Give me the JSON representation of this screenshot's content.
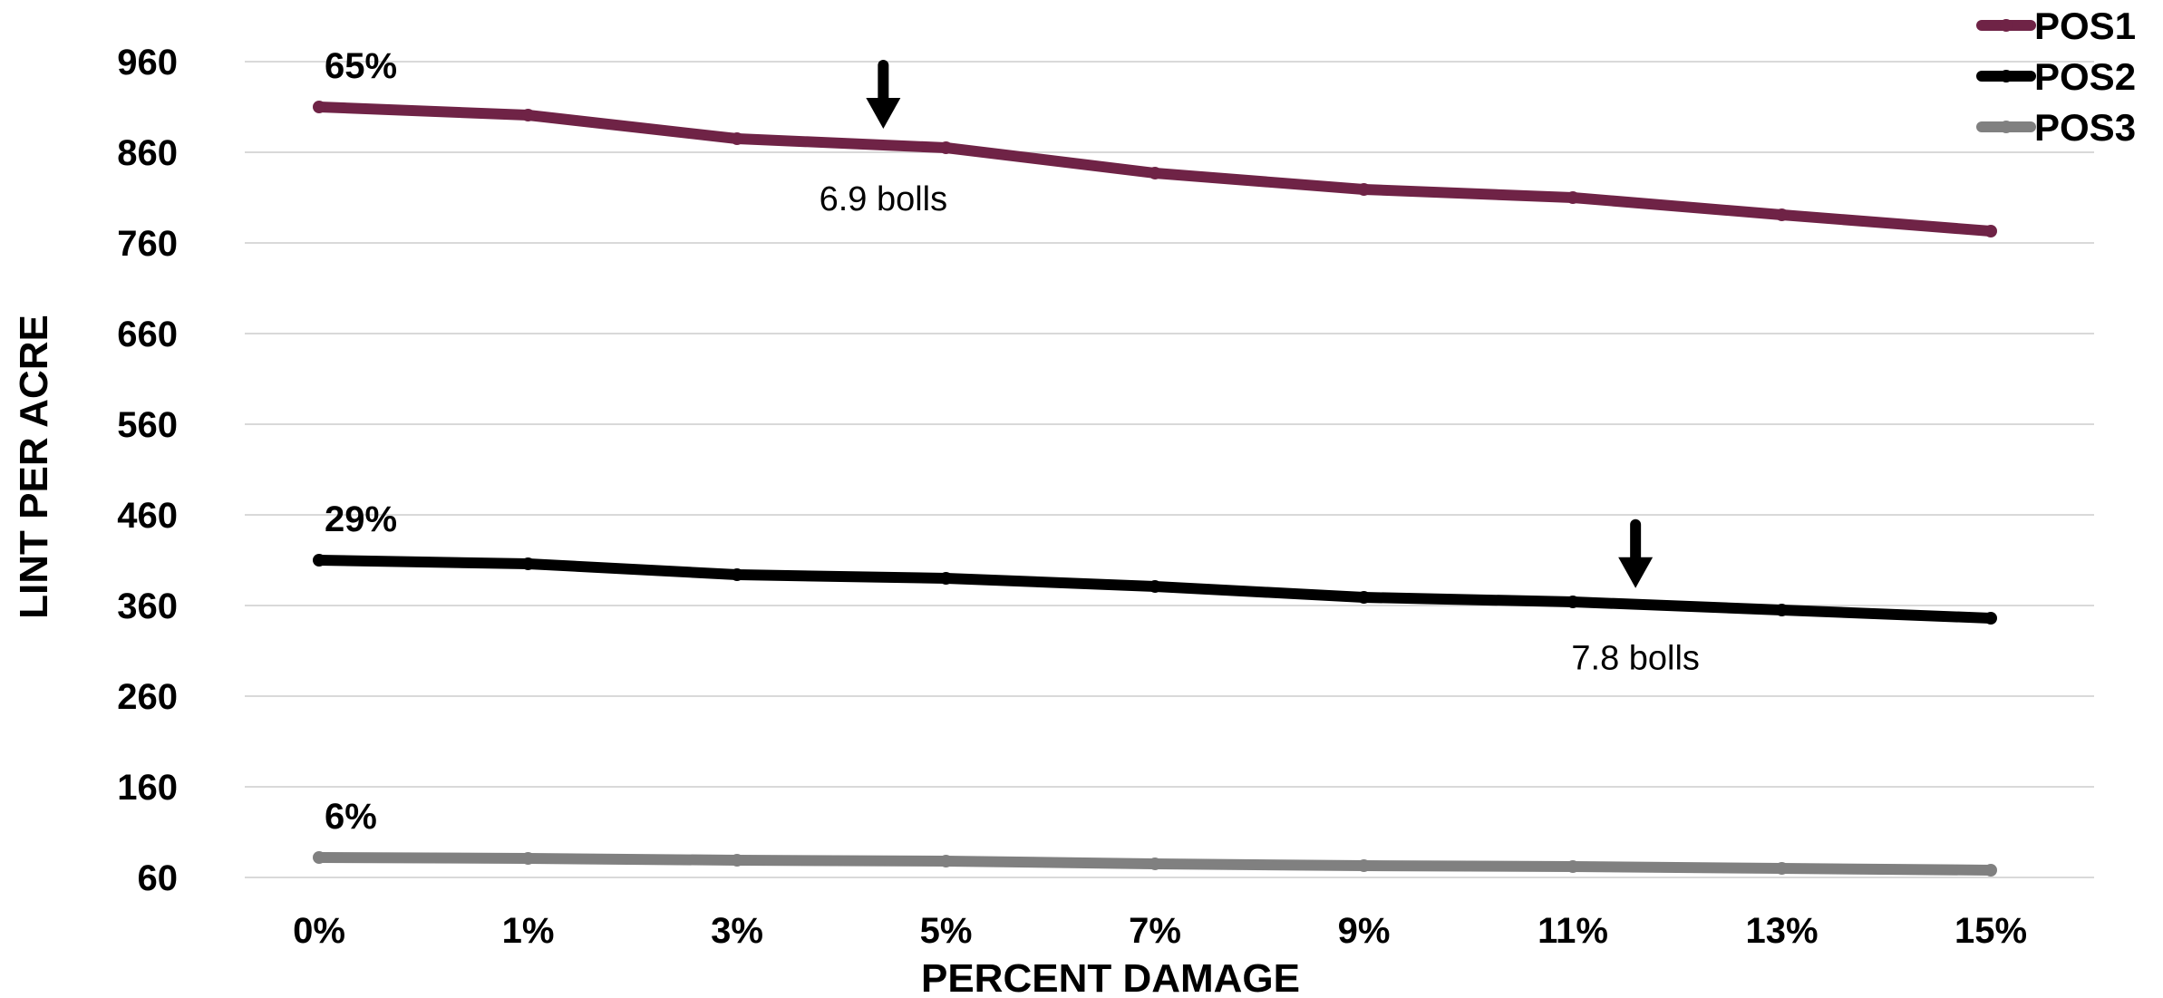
{
  "chart_data": {
    "type": "line",
    "title": "",
    "xlabel": "PERCENT DAMAGE",
    "ylabel": "LINT PER ACRE",
    "categories": [
      "0%",
      "1%",
      "3%",
      "5%",
      "7%",
      "9%",
      "11%",
      "13%",
      "15%"
    ],
    "yticks": [
      "960",
      "860",
      "760",
      "660",
      "560",
      "460",
      "360",
      "260",
      "160",
      "60"
    ],
    "ylim": [
      60,
      960
    ],
    "grid": true,
    "legend": "top-right",
    "series": [
      {
        "name": "POS1",
        "color": "#6f2346",
        "values": [
          910,
          901,
          875,
          865,
          837,
          819,
          810,
          791,
          773
        ],
        "start_label": "65%"
      },
      {
        "name": "POS2",
        "color": "#000000",
        "values": [
          410,
          406,
          394,
          390,
          381,
          369,
          364,
          355,
          346
        ],
        "start_label": "29%"
      },
      {
        "name": "POS3",
        "color": "#808080",
        "values": [
          82,
          81,
          79,
          78,
          75,
          73,
          72,
          70,
          68
        ],
        "start_label": "6%"
      }
    ],
    "annotations": [
      {
        "text": "6.9 bolls",
        "series": 0,
        "x_index": 2.7
      },
      {
        "text": "7.8 bolls",
        "series": 1,
        "x_index": 6.3
      }
    ]
  }
}
